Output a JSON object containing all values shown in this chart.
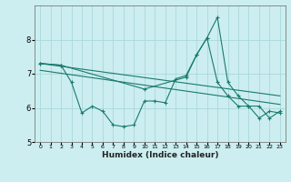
{
  "xlabel": "Humidex (Indice chaleur)",
  "bg_color": "#cceef0",
  "grid_color": "#aad8da",
  "line_color": "#1a7a6e",
  "xlim": [
    -0.5,
    23.5
  ],
  "ylim": [
    5,
    9
  ],
  "yticks": [
    5,
    6,
    7,
    8
  ],
  "xticks": [
    0,
    1,
    2,
    3,
    4,
    5,
    6,
    7,
    8,
    9,
    10,
    11,
    12,
    13,
    14,
    15,
    16,
    17,
    18,
    19,
    20,
    21,
    22,
    23
  ],
  "series1_x": [
    0,
    2,
    3,
    4,
    5,
    6,
    7,
    8,
    9,
    10,
    11,
    12,
    13,
    14,
    15,
    16,
    17,
    18,
    19,
    20,
    21,
    22,
    23
  ],
  "series1_y": [
    7.3,
    7.25,
    6.75,
    5.85,
    6.05,
    5.9,
    5.5,
    5.45,
    5.5,
    6.2,
    6.2,
    6.15,
    6.85,
    6.95,
    7.55,
    8.05,
    8.65,
    6.75,
    6.35,
    6.05,
    6.05,
    5.7,
    5.9
  ],
  "series2_x": [
    0,
    2,
    10,
    14,
    15,
    16,
    17,
    18,
    19,
    20,
    21,
    22,
    23
  ],
  "series2_y": [
    7.3,
    7.25,
    6.55,
    6.9,
    7.55,
    8.05,
    6.75,
    6.35,
    6.05,
    6.05,
    5.7,
    5.9,
    5.85
  ],
  "line1_x": [
    0,
    23
  ],
  "line1_y": [
    7.3,
    6.35
  ],
  "line2_x": [
    0,
    23
  ],
  "line2_y": [
    7.1,
    6.1
  ]
}
